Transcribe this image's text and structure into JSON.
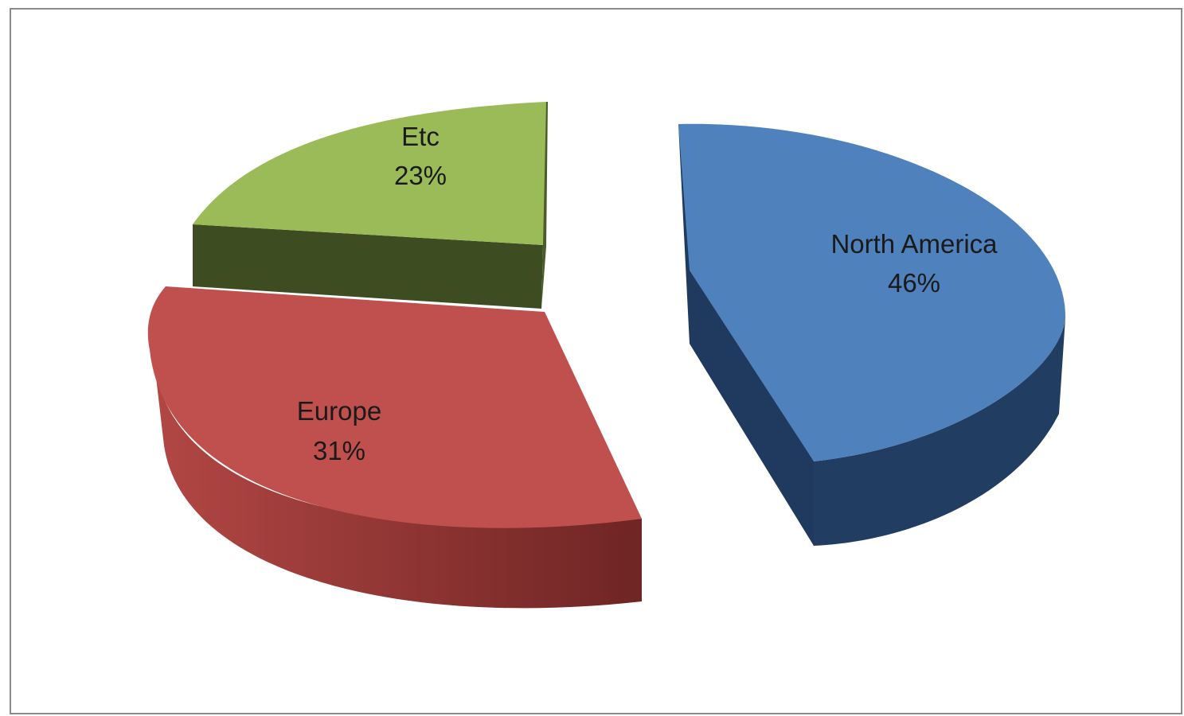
{
  "chart_data": {
    "type": "pie",
    "style": "3d-exploded",
    "slices": [
      {
        "name": "North America",
        "value": 46,
        "label": "46%",
        "color": "#4f81bd",
        "side_color": "#243f60"
      },
      {
        "name": "Europe",
        "value": 31,
        "label": "31%",
        "color": "#c0504d",
        "side_color": "#772c2a"
      },
      {
        "name": "Etc",
        "value": 23,
        "label": "23%",
        "color": "#9bbb59",
        "side_color": "#3d4d21"
      }
    ],
    "title": "",
    "legend": "none"
  }
}
